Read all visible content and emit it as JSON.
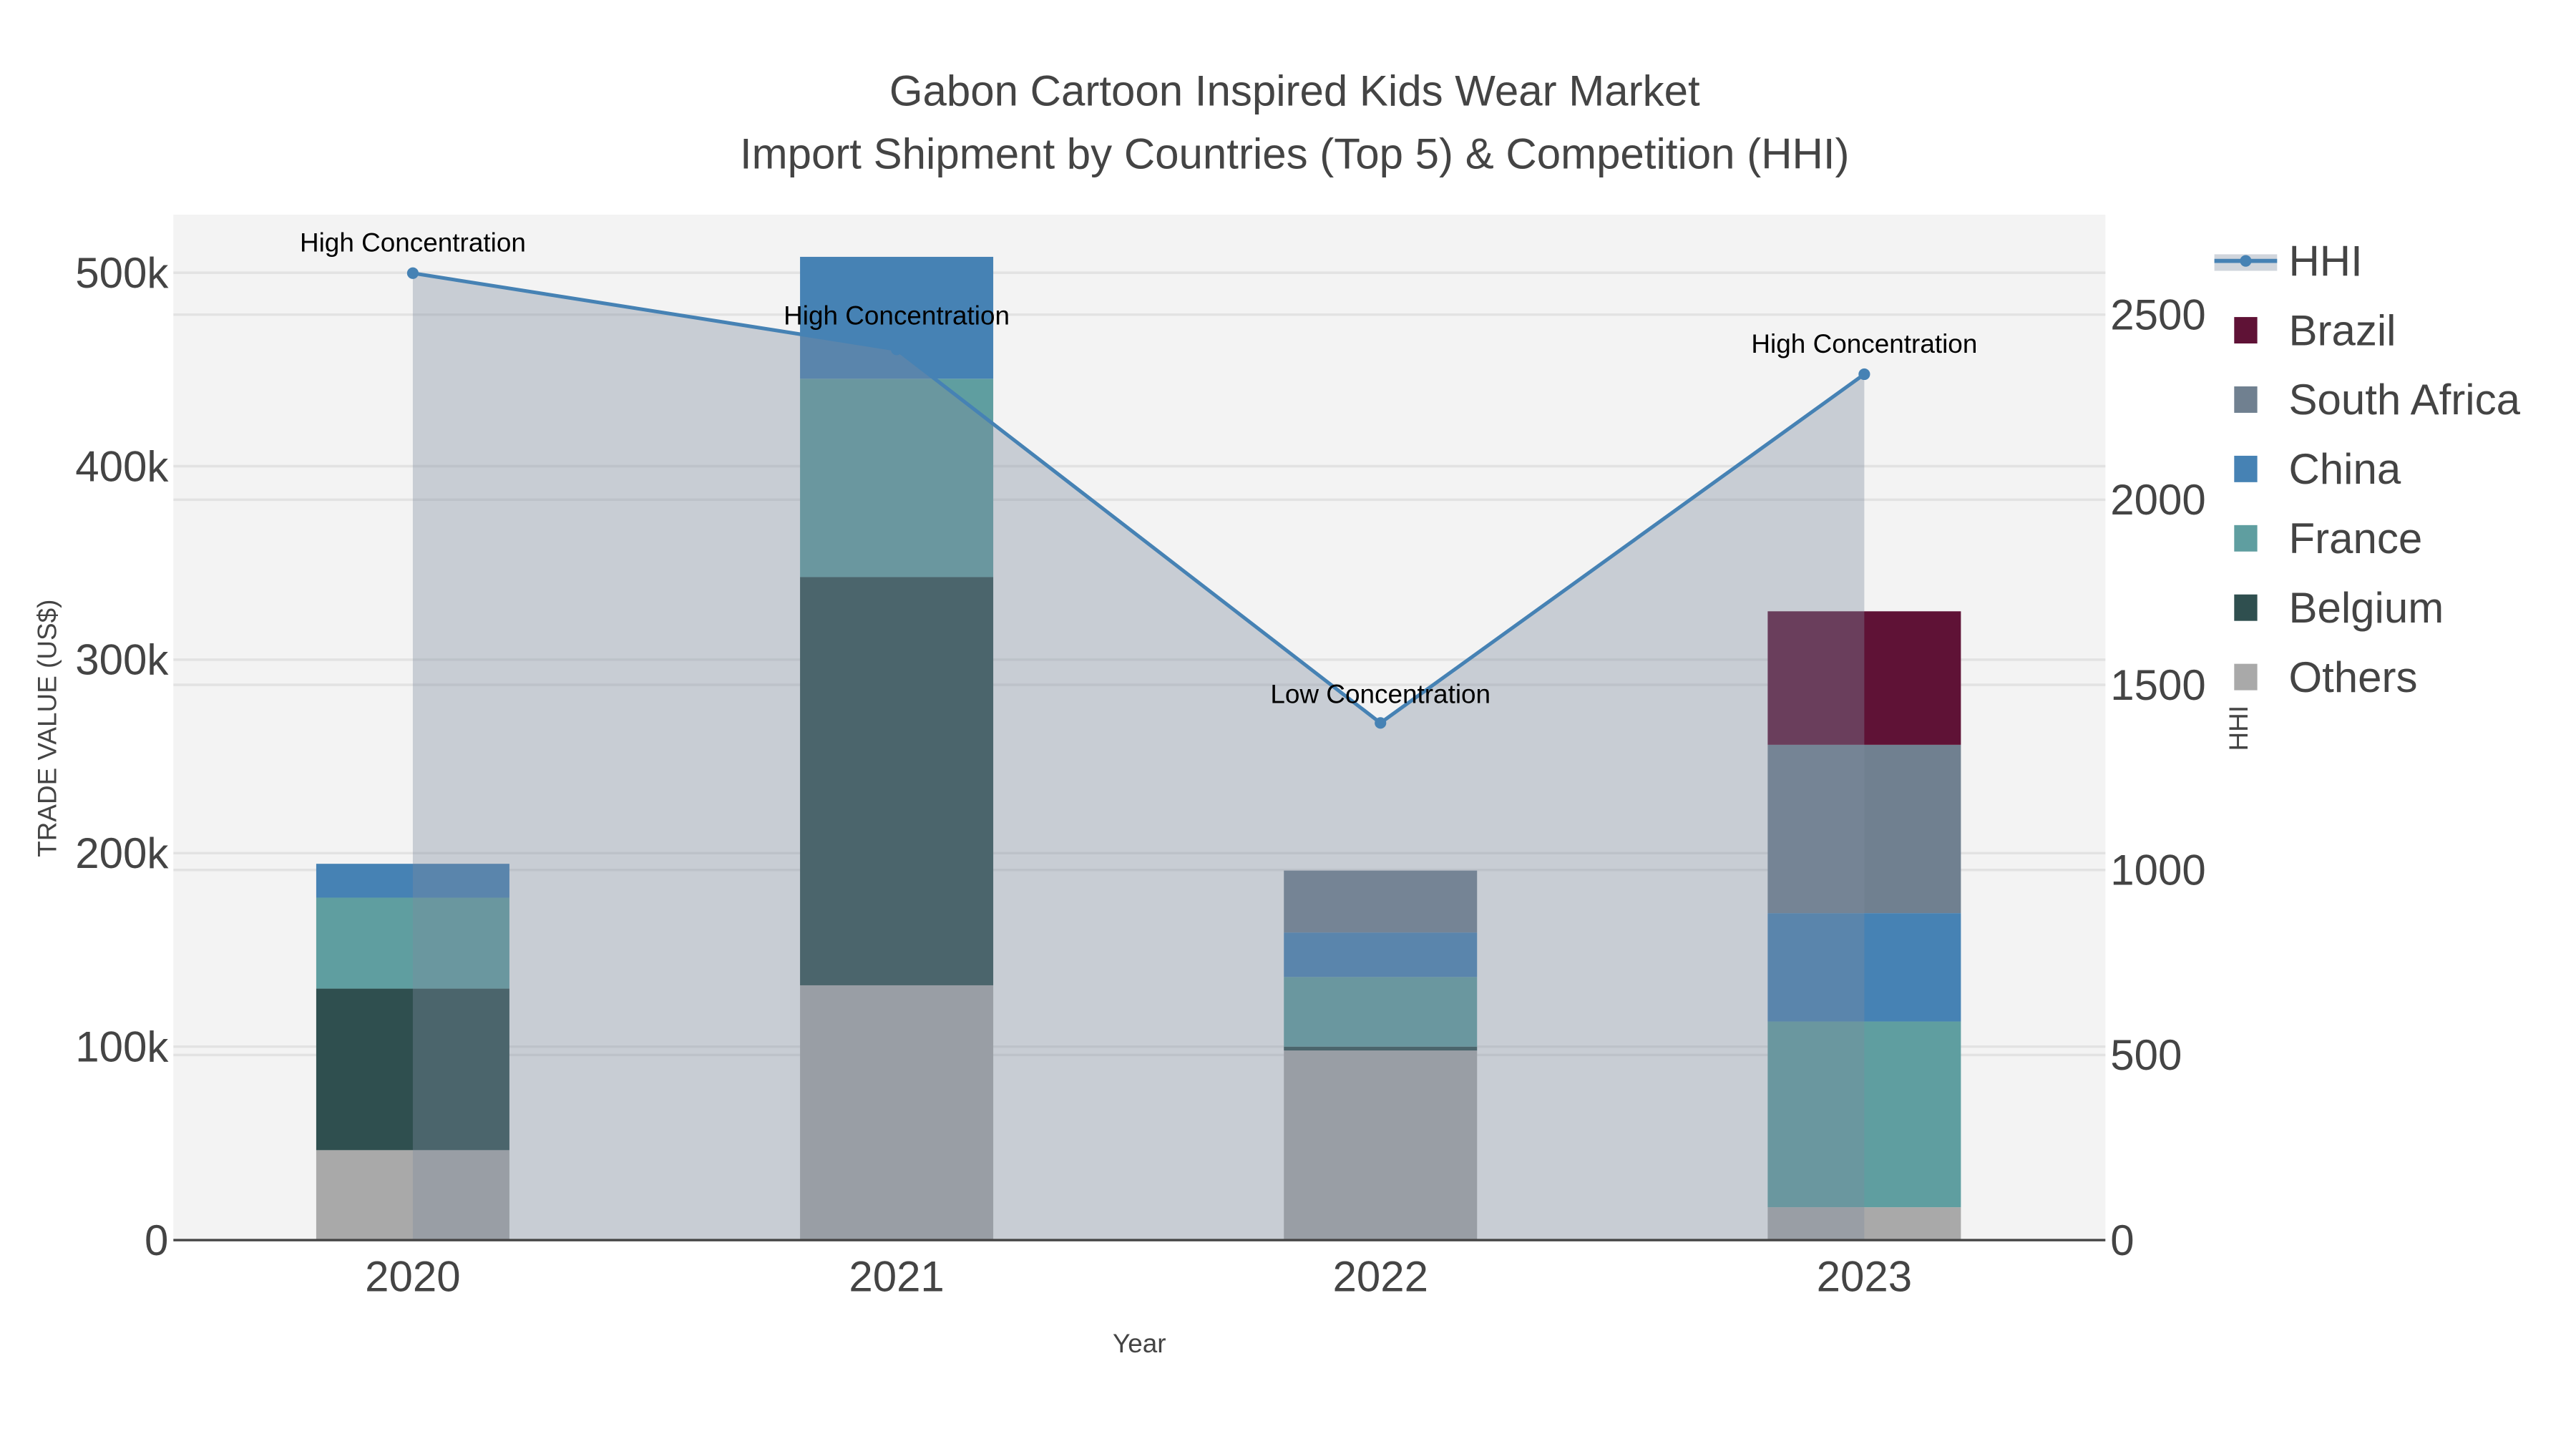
{
  "chart_data": {
    "type": "bar",
    "title_line1": "Gabon Cartoon Inspired Kids Wear Market",
    "title_line2": "Import Shipment by Countries (Top 5) & Competition (HHI)",
    "xlabel": "Year",
    "ylabel": "TRADE VALUE (US$)",
    "y2label": "HHI",
    "categories": [
      "2020",
      "2021",
      "2022",
      "2023"
    ],
    "ylim": [
      0,
      530000
    ],
    "y2lim": [
      0,
      2770
    ],
    "yticks": [
      {
        "v": 0,
        "label": "0"
      },
      {
        "v": 100000,
        "label": "100k"
      },
      {
        "v": 200000,
        "label": "200k"
      },
      {
        "v": 300000,
        "label": "300k"
      },
      {
        "v": 400000,
        "label": "400k"
      },
      {
        "v": 500000,
        "label": "500k"
      }
    ],
    "y2ticks": [
      {
        "v": 0,
        "label": "0"
      },
      {
        "v": 500,
        "label": "500"
      },
      {
        "v": 1000,
        "label": "1000"
      },
      {
        "v": 1500,
        "label": "1500"
      },
      {
        "v": 2000,
        "label": "2000"
      },
      {
        "v": 2500,
        "label": "2500"
      }
    ],
    "series": [
      {
        "name": "Others",
        "color": "#a9a9a9",
        "values": [
          46500,
          131700,
          98000,
          17000
        ]
      },
      {
        "name": "Belgium",
        "color": "#2f4f4f",
        "values": [
          83500,
          211000,
          2000,
          0
        ]
      },
      {
        "name": "France",
        "color": "#5f9ea0",
        "values": [
          47000,
          102500,
          36000,
          96000
        ]
      },
      {
        "name": "China",
        "color": "#4682b4",
        "values": [
          17500,
          63000,
          23000,
          56000
        ]
      },
      {
        "name": "South Africa",
        "color": "#708090",
        "values": [
          0,
          0,
          32000,
          87000
        ]
      },
      {
        "name": "Brazil",
        "color": "#5f1236",
        "values": [
          0,
          0,
          0,
          69000
        ]
      }
    ],
    "hhi": {
      "name": "HHI",
      "color": "#4682b4",
      "values": [
        2612,
        2406,
        1397,
        2339
      ]
    },
    "annotations": [
      "High Concentration",
      "High Concentration",
      "Low Concentration",
      "High Concentration"
    ],
    "legend_order": [
      "HHI",
      "Brazil",
      "South Africa",
      "China",
      "France",
      "Belgium",
      "Others"
    ],
    "legend_position": "right",
    "grid": true
  }
}
